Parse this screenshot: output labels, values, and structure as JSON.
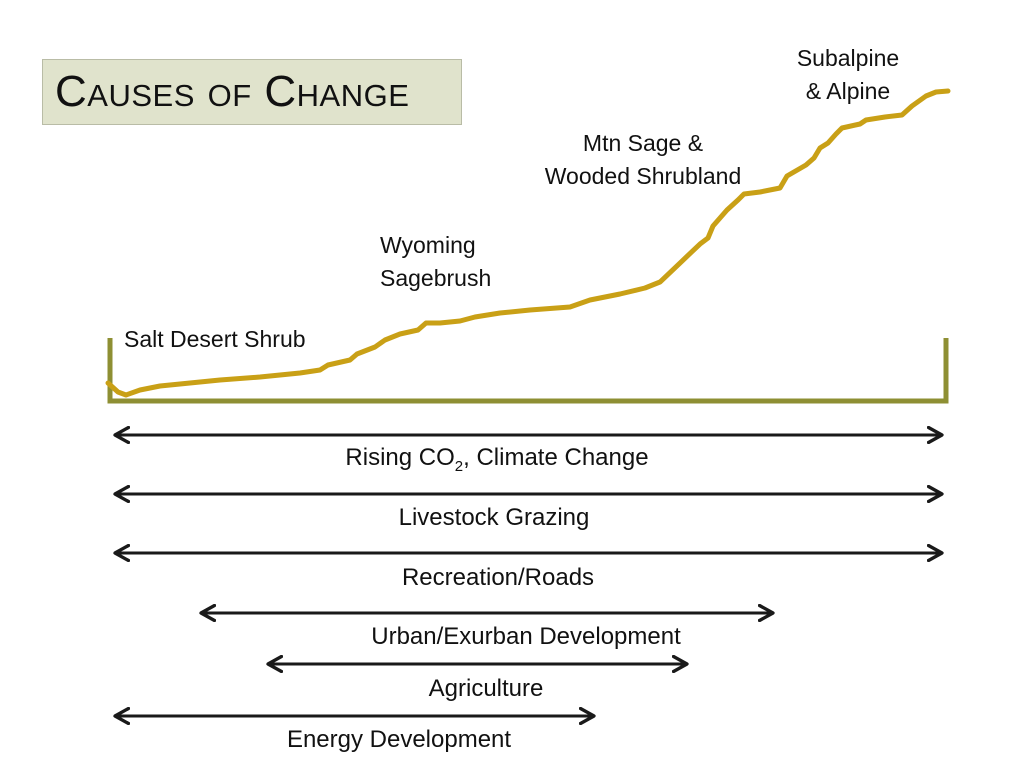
{
  "title": "Causes of Change",
  "colors": {
    "elevation_line": "#C9A016",
    "baseline_bracket": "#8E8F33",
    "arrows": "#1a1a1a",
    "title_bg": "#E0E3CC"
  },
  "zones": [
    {
      "id": "salt-desert-shrub",
      "lines": [
        "Salt Desert Shrub"
      ]
    },
    {
      "id": "wyoming-sagebrush",
      "lines": [
        "Wyoming",
        "Sagebrush"
      ]
    },
    {
      "id": "mtn-sage",
      "lines": [
        "Mtn Sage &",
        "Wooded Shrubland"
      ]
    },
    {
      "id": "subalpine-alpine",
      "lines": [
        "Subalpine",
        "& Alpine"
      ]
    }
  ],
  "causes": [
    {
      "id": "rising-co2",
      "label_main": "Rising CO",
      "label_sub": "2",
      "label_tail": ", Climate Change",
      "span": "Salt Desert Shrub to Subalpine & Alpine"
    },
    {
      "id": "livestock-grazing",
      "label": "Livestock Grazing",
      "span": "Salt Desert Shrub to Subalpine & Alpine"
    },
    {
      "id": "recreation-roads",
      "label": "Recreation/Roads",
      "span": "Salt Desert Shrub to Subalpine & Alpine"
    },
    {
      "id": "urban-development",
      "label": "Urban/Exurban Development",
      "span": "Salt Desert Shrub to Mtn Sage & Wooded Shrubland"
    },
    {
      "id": "agriculture",
      "label": "Agriculture",
      "span": "Wyoming Sagebrush to Mtn Sage & Wooded Shrubland"
    },
    {
      "id": "energy-development",
      "label": "Energy Development",
      "span": "Salt Desert Shrub to Wyoming Sagebrush"
    }
  ]
}
